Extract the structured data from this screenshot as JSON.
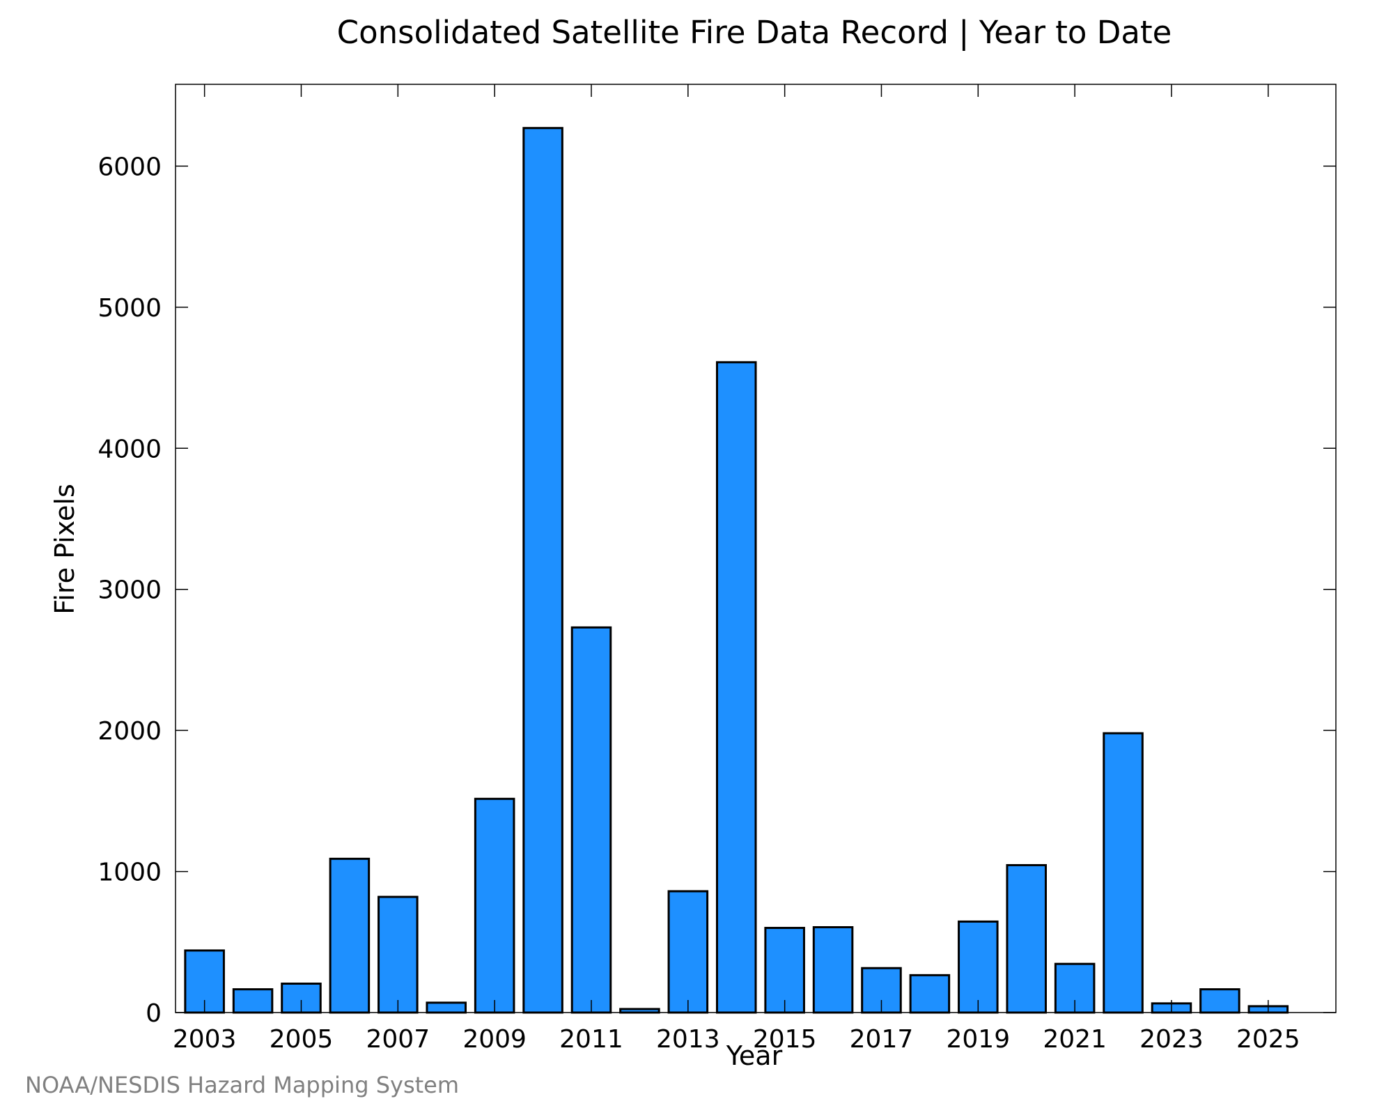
{
  "chart_data": {
    "type": "bar",
    "title": "Consolidated Satellite Fire Data Record | Year to Date",
    "xlabel": "Year",
    "ylabel": "Fire Pixels",
    "x": [
      2003,
      2004,
      2005,
      2006,
      2007,
      2008,
      2009,
      2010,
      2011,
      2012,
      2013,
      2014,
      2015,
      2016,
      2017,
      2018,
      2019,
      2020,
      2021,
      2022,
      2023,
      2024,
      2025
    ],
    "values": [
      440,
      165,
      205,
      1090,
      820,
      70,
      1515,
      6270,
      2730,
      25,
      860,
      4610,
      600,
      605,
      315,
      265,
      645,
      1045,
      345,
      1980,
      65,
      165,
      45
    ],
    "xticks": [
      "2003",
      "2005",
      "2007",
      "2009",
      "2011",
      "2013",
      "2015",
      "2017",
      "2019",
      "2021",
      "2023",
      "2025"
    ],
    "yticks": [
      "0",
      "1000",
      "2000",
      "3000",
      "4000",
      "5000",
      "6000"
    ],
    "ylim": [
      0,
      6580
    ],
    "xlim": [
      2002.4,
      2026.4
    ],
    "grid": false,
    "bar_color": "#1e90ff",
    "edge_color": "#000000"
  },
  "credit": "NOAA/NESDIS Hazard Mapping System"
}
